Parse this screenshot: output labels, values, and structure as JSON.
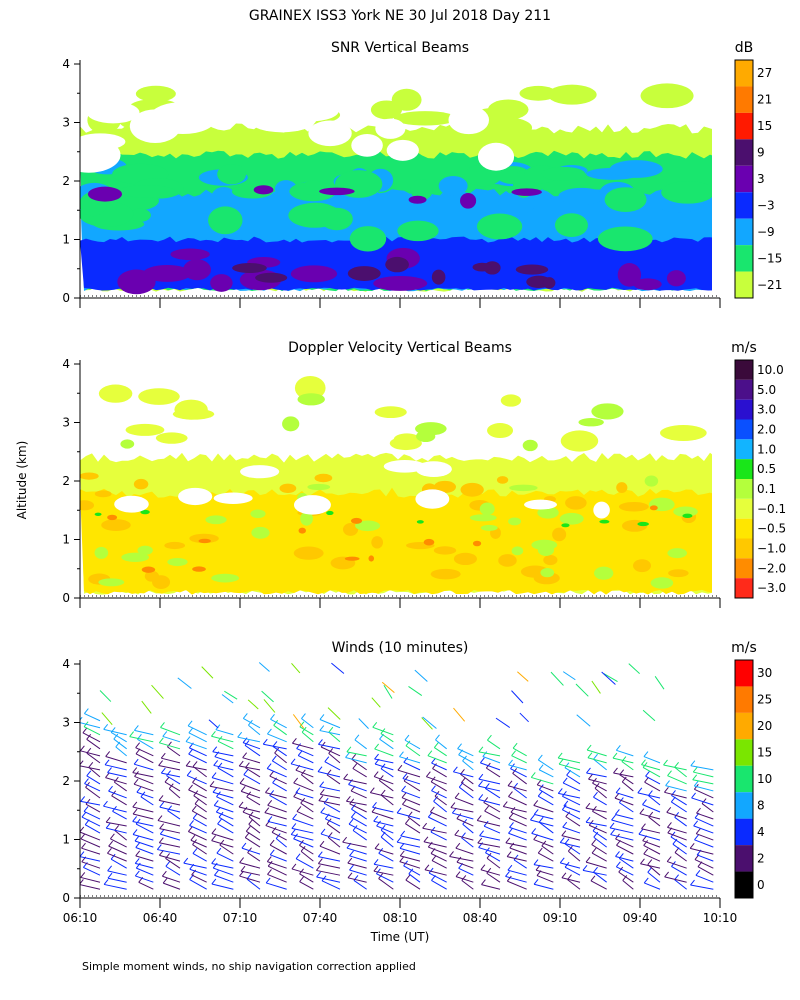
{
  "figure_title": "GRAINEX ISS3 York NE  30 Jul 2018 Day 211",
  "footnote": "Simple moment winds, no ship navigation correction applied",
  "chart_data": [
    {
      "type": "heatmap",
      "title": "SNR Vertical Beams",
      "ylabel": "Altitude (km)",
      "xlabel": "",
      "ylim": [
        0,
        4
      ],
      "yticks": [
        "0",
        "1",
        "2",
        "3",
        "4"
      ],
      "xlim_time": [
        "06:10",
        "10:10"
      ],
      "colorbar": {
        "units": "dB",
        "labels": [
          "27",
          "21",
          "15",
          "9",
          "3",
          "−3",
          "−9",
          "−15",
          "−21"
        ],
        "colors": [
          "#ffaa00",
          "#ff7a00",
          "#ff1a00",
          "#4b0f6e",
          "#6a00b0",
          "#0a2aff",
          "#12a7ff",
          "#19e66e",
          "#c8ff3c"
        ]
      },
      "layers": [
        {
          "alt_range_km": [
            0.15,
            0.6
          ],
          "value": "9",
          "color": "#4b0f6e"
        },
        {
          "alt_range_km": [
            0.3,
            0.8
          ],
          "value": "3",
          "color": "#6a00b0"
        },
        {
          "alt_range_km": [
            0.15,
            1.0
          ],
          "value": "−3",
          "color": "#0a2aff"
        },
        {
          "alt_range_km": [
            0.2,
            1.8
          ],
          "value": "−9",
          "color": "#12a7ff"
        },
        {
          "alt_range_km": [
            0.2,
            2.4
          ],
          "value": "−15",
          "color": "#19e66e"
        },
        {
          "alt_range_km": [
            1.5,
            2.9
          ],
          "value": "−21",
          "color": "#c8ff3c"
        }
      ]
    },
    {
      "type": "heatmap",
      "title": "Doppler Velocity Vertical Beams",
      "ylabel": "Altitude (km)",
      "ylim": [
        0,
        4
      ],
      "yticks": [
        "0",
        "1",
        "2",
        "3",
        "4"
      ],
      "colorbar": {
        "units": "m/s",
        "labels": [
          "10.0",
          "5.0",
          "3.0",
          "2.0",
          "1.0",
          "0.5",
          "0.1",
          "−0.1",
          "−0.5",
          "−1.0",
          "−2.0",
          "−3.0"
        ],
        "colors": [
          "#3a0a3a",
          "#4b0f8a",
          "#2a10d0",
          "#0a50ff",
          "#12b4ff",
          "#19e619",
          "#b4ff3c",
          "#e6ff3c",
          "#ffe600",
          "#ffc800",
          "#ff8c00",
          "#ff2a1a"
        ]
      },
      "layers": [
        {
          "alt_range_km": [
            0.1,
            2.4
          ],
          "value": "−0.1",
          "color": "#e6ff3c"
        },
        {
          "alt_range_km": [
            0.1,
            1.8
          ],
          "value": "−0.5",
          "color": "#ffe600"
        },
        {
          "alt_range_km": [
            0.1,
            0.6
          ],
          "value": "−1.0",
          "color": "#ffc800"
        },
        {
          "alt_range_km": [
            2.9,
            3.6
          ],
          "value": "0.1",
          "color": "#b4ff3c"
        }
      ]
    },
    {
      "type": "wind_barbs",
      "title": "Winds (10 minutes)",
      "ylabel": "Altitude (km)",
      "xlabel": "Time (UT)",
      "ylim": [
        0,
        4
      ],
      "yticks": [
        "0",
        "1",
        "2",
        "3",
        "4"
      ],
      "xticklabels": [
        "06:10",
        "06:40",
        "07:10",
        "07:40",
        "08:10",
        "08:40",
        "09:10",
        "09:40",
        "10:10"
      ],
      "colorbar": {
        "units": "m/s",
        "labels": [
          "30",
          "25",
          "20",
          "15",
          "10",
          "8",
          "4",
          "2",
          "0"
        ],
        "colors": [
          "#ff0000",
          "#ff7a00",
          "#ffaa00",
          "#7ae600",
          "#19e66e",
          "#12a7ff",
          "#0a2aff",
          "#4b0f6e",
          "#000000"
        ]
      },
      "profiles_utc": [
        "06:10",
        "06:20",
        "06:30",
        "06:40",
        "06:50",
        "07:00",
        "07:10",
        "07:20",
        "07:30",
        "07:40",
        "07:50",
        "08:00",
        "08:10",
        "08:20",
        "08:30",
        "08:40",
        "08:50",
        "09:00",
        "09:10",
        "09:20",
        "09:30",
        "09:40",
        "09:50",
        "10:00"
      ],
      "profile_tops_km": [
        3.1,
        2.8,
        2.9,
        2.9,
        2.9,
        2.9,
        3.0,
        3.0,
        3.0,
        3.0,
        2.6,
        2.8,
        2.6,
        2.6,
        2.5,
        2.6,
        2.5,
        2.3,
        2.4,
        2.5,
        2.5,
        2.4,
        2.2,
        2.2
      ]
    }
  ]
}
